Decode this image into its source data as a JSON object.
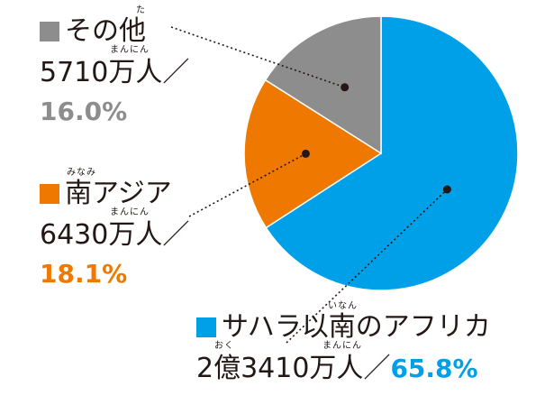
{
  "chart_data": {
    "type": "pie",
    "start_angle_deg": 0,
    "direction": "clockwise",
    "slices": [
      {
        "label": "サハラ以南のアフリカ",
        "label_ruby": [
          "いなん"
        ],
        "amount": "2億3410万人",
        "amount_ruby": [
          "おく",
          "まんにん"
        ],
        "percent_text": "65.8%",
        "value": 65.8,
        "color": "#00a0e9"
      },
      {
        "label": "南アジア",
        "label_ruby": [
          "みなみ"
        ],
        "amount": "6430万人",
        "amount_ruby": [
          "まんにん"
        ],
        "percent_text": "18.1%",
        "value": 18.1,
        "color": "#ee7800"
      },
      {
        "label": "その他",
        "label_ruby": [
          "た"
        ],
        "amount": "5710万人",
        "amount_ruby": [
          "まんにん"
        ],
        "percent_text": "16.0%",
        "value": 16.0,
        "color": "#8d8d8d"
      }
    ],
    "separator": "／",
    "text_color": "#231815"
  }
}
